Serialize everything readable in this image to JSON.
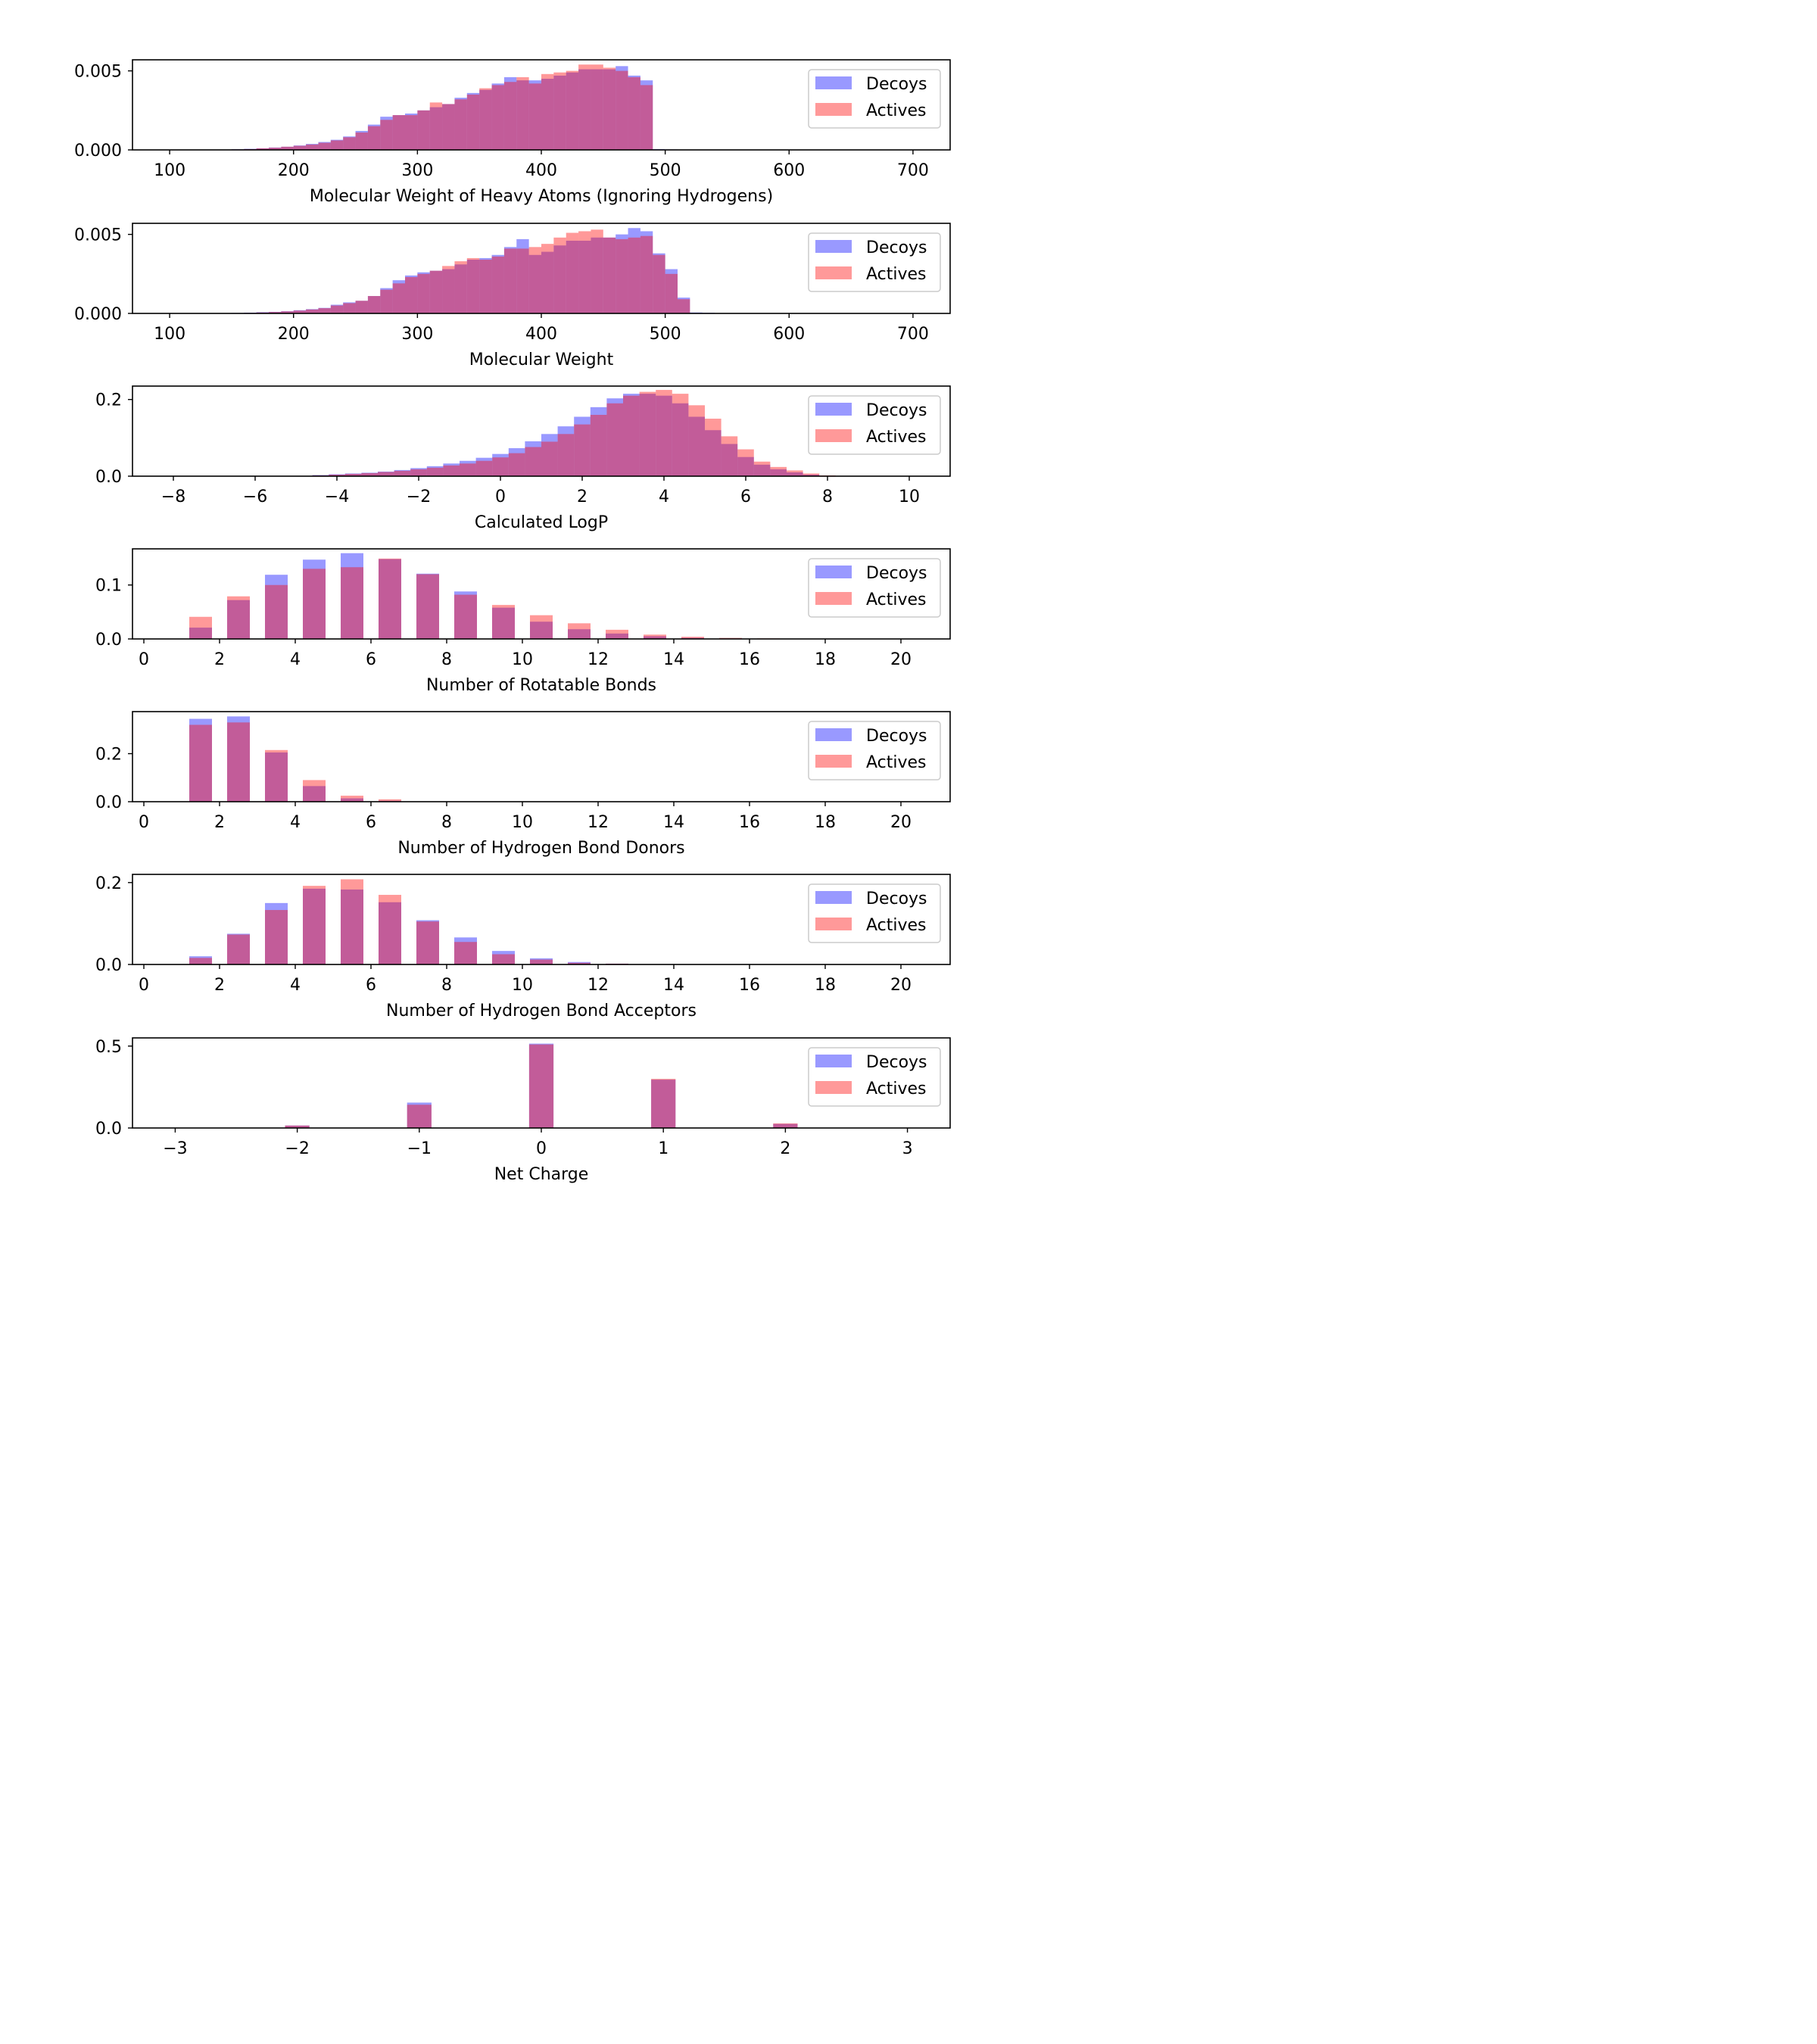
{
  "colors": {
    "decoys": "#0000ff",
    "actives": "#ff0000",
    "series_opacity": 0.4,
    "axes": "#000000",
    "background": "#ffffff"
  },
  "legend": {
    "placement": "upper-right",
    "entries": [
      "Decoys",
      "Actives"
    ]
  },
  "chart_data": [
    {
      "type": "bar",
      "xlabel": "Molecular Weight of Heavy Atoms (Ignoring Hydrogens)",
      "xlim": [
        70,
        730
      ],
      "ylim": [
        0,
        0.0057
      ],
      "xticks": [
        100,
        200,
        300,
        400,
        500,
        600,
        700
      ],
      "xtick_labels": [
        "100",
        "200",
        "300",
        "400",
        "500",
        "600",
        "700"
      ],
      "yticks": [
        0,
        0.005
      ],
      "ytick_labels": [
        "0.000",
        "0.005"
      ],
      "bin_start": 80,
      "bin_width": 10,
      "bar_fraction": 1.0,
      "grid": false,
      "legend": "upper right",
      "series": [
        {
          "name": "Decoys",
          "values": [
            0,
            0,
            0,
            0,
            0,
            0,
            2e-05,
            4e-05,
            7e-05,
            0.0001,
            0.00015,
            0.0002,
            0.00028,
            0.00038,
            0.0005,
            0.00064,
            0.00085,
            0.0012,
            0.0016,
            0.0021,
            0.0022,
            0.0023,
            0.0025,
            0.0027,
            0.0029,
            0.0033,
            0.0036,
            0.0038,
            0.0042,
            0.0046,
            0.0044,
            0.0044,
            0.0045,
            0.0047,
            0.0049,
            0.0051,
            0.0051,
            0.0051,
            0.0053,
            0.0047,
            0.0044,
            5e-05,
            3e-05,
            2e-05,
            1e-05,
            0,
            0,
            0,
            0,
            0,
            0,
            0,
            0,
            0,
            0,
            0,
            0,
            0,
            0,
            0,
            0,
            0,
            0,
            0,
            0
          ]
        },
        {
          "name": "Actives",
          "values": [
            0,
            0,
            0,
            0,
            0,
            0,
            1e-05,
            3e-05,
            5e-05,
            0.0001,
            0.00014,
            0.0002,
            0.00026,
            0.00034,
            0.00045,
            0.0006,
            0.0008,
            0.0011,
            0.0015,
            0.0019,
            0.0022,
            0.0022,
            0.0025,
            0.003,
            0.0029,
            0.0032,
            0.0035,
            0.0039,
            0.0041,
            0.0043,
            0.0046,
            0.0042,
            0.0048,
            0.0049,
            0.005,
            0.0054,
            0.0054,
            0.0052,
            0.005,
            0.0046,
            0.0041,
            1e-05,
            0,
            0,
            0,
            0,
            0,
            0,
            0,
            0,
            0,
            0,
            0,
            0,
            0,
            0,
            0,
            0,
            0,
            0,
            0,
            0,
            0,
            0,
            0
          ]
        }
      ]
    },
    {
      "type": "bar",
      "xlabel": "Molecular Weight",
      "xlim": [
        70,
        730
      ],
      "ylim": [
        0,
        0.0057
      ],
      "xticks": [
        100,
        200,
        300,
        400,
        500,
        600,
        700
      ],
      "xtick_labels": [
        "100",
        "200",
        "300",
        "400",
        "500",
        "600",
        "700"
      ],
      "yticks": [
        0,
        0.005
      ],
      "ytick_labels": [
        "0.000",
        "0.005"
      ],
      "bin_start": 80,
      "bin_width": 10,
      "bar_fraction": 1.0,
      "grid": false,
      "legend": "upper right",
      "series": [
        {
          "name": "Decoys",
          "values": [
            0,
            0,
            0,
            0,
            0,
            0,
            0,
            3e-05,
            5e-05,
            8e-05,
            0.0001,
            0.00014,
            0.0002,
            0.00027,
            0.00035,
            0.00055,
            0.0007,
            0.0008,
            0.0011,
            0.0016,
            0.0021,
            0.0024,
            0.0026,
            0.0027,
            0.0028,
            0.0031,
            0.0034,
            0.0035,
            0.0037,
            0.0042,
            0.0047,
            0.0037,
            0.0039,
            0.0043,
            0.0046,
            0.0046,
            0.0048,
            0.0048,
            0.005,
            0.0054,
            0.0052,
            0.0038,
            0.0028,
            0.001,
            6e-05,
            4e-05,
            2e-05,
            0,
            0,
            0,
            0,
            0,
            0,
            0,
            0,
            0,
            0,
            0,
            0,
            0,
            0,
            0,
            0,
            0,
            0
          ]
        },
        {
          "name": "Actives",
          "values": [
            0,
            0,
            0,
            0,
            0,
            0,
            0,
            1e-05,
            3e-05,
            6e-05,
            9e-05,
            0.00013,
            0.00018,
            0.00025,
            0.00033,
            0.0005,
            0.00065,
            0.0008,
            0.0011,
            0.0015,
            0.0019,
            0.0023,
            0.0025,
            0.0027,
            0.003,
            0.0033,
            0.0035,
            0.0034,
            0.0036,
            0.0041,
            0.0041,
            0.0042,
            0.0044,
            0.0048,
            0.0051,
            0.0052,
            0.0053,
            0.0048,
            0.0047,
            0.0048,
            0.0049,
            0.0037,
            0.0025,
            0.0009,
            2e-05,
            0,
            0,
            0,
            0,
            0,
            0,
            0,
            0,
            0,
            0,
            0,
            0,
            0,
            0,
            0,
            0,
            0,
            0,
            0,
            0
          ]
        }
      ]
    },
    {
      "type": "bar",
      "xlabel": "Calculated LogP",
      "xlim": [
        -9,
        11
      ],
      "ylim": [
        0,
        0.235
      ],
      "xticks": [
        -8,
        -6,
        -4,
        -2,
        0,
        2,
        4,
        6,
        8,
        10
      ],
      "xtick_labels": [
        "−8",
        "−6",
        "−4",
        "−2",
        "0",
        "2",
        "4",
        "6",
        "8",
        "10"
      ],
      "yticks": [
        0,
        0.2
      ],
      "ytick_labels": [
        "0.0",
        "0.2"
      ],
      "bin_start": -5,
      "bin_width": 0.4,
      "bar_fraction": 1.0,
      "grid": false,
      "legend": "upper right",
      "series": [
        {
          "name": "Decoys",
          "values": [
            0.001,
            0.003,
            0.005,
            0.007,
            0.009,
            0.012,
            0.016,
            0.021,
            0.026,
            0.033,
            0.04,
            0.048,
            0.058,
            0.073,
            0.091,
            0.11,
            0.13,
            0.155,
            0.18,
            0.203,
            0.215,
            0.215,
            0.21,
            0.19,
            0.155,
            0.12,
            0.084,
            0.05,
            0.03,
            0.018,
            0.01,
            0.004,
            0.001,
            0
          ]
        },
        {
          "name": "Actives",
          "values": [
            0.001,
            0.002,
            0.004,
            0.006,
            0.008,
            0.011,
            0.014,
            0.018,
            0.022,
            0.028,
            0.033,
            0.04,
            0.049,
            0.06,
            0.076,
            0.09,
            0.11,
            0.135,
            0.16,
            0.19,
            0.21,
            0.22,
            0.225,
            0.215,
            0.185,
            0.15,
            0.104,
            0.07,
            0.038,
            0.024,
            0.015,
            0.007,
            0.002,
            0
          ]
        }
      ]
    },
    {
      "type": "bar",
      "xlabel": "Number of Rotatable Bonds",
      "xlim": [
        -0.3,
        21.3
      ],
      "ylim": [
        0,
        0.167
      ],
      "xticks": [
        0,
        2,
        4,
        6,
        8,
        10,
        12,
        14,
        16,
        18,
        20
      ],
      "xtick_labels": [
        "0",
        "2",
        "4",
        "6",
        "8",
        "10",
        "12",
        "14",
        "16",
        "18",
        "20"
      ],
      "yticks": [
        0,
        0.1
      ],
      "ytick_labels": [
        "0.0",
        "0.1"
      ],
      "bin_start": 1,
      "bin_width": 1,
      "bar_fraction": 0.6,
      "grid": false,
      "legend": "upper right",
      "series": [
        {
          "name": "Decoys",
          "values": [
            0.021,
            0.072,
            0.119,
            0.147,
            0.159,
            0.148,
            0.121,
            0.088,
            0.058,
            0.032,
            0.018,
            0.01,
            0.005,
            0.002,
            0.001,
            0.0005,
            0,
            0,
            0,
            0
          ]
        },
        {
          "name": "Actives",
          "values": [
            0.041,
            0.079,
            0.1,
            0.13,
            0.133,
            0.149,
            0.12,
            0.082,
            0.063,
            0.044,
            0.029,
            0.017,
            0.008,
            0.004,
            0.002,
            0.001,
            0,
            0,
            0,
            0
          ]
        }
      ]
    },
    {
      "type": "bar",
      "xlabel": "Number of Hydrogen Bond Donors",
      "xlim": [
        -0.3,
        21.3
      ],
      "ylim": [
        0,
        0.375
      ],
      "xticks": [
        0,
        2,
        4,
        6,
        8,
        10,
        12,
        14,
        16,
        18,
        20
      ],
      "xtick_labels": [
        "0",
        "2",
        "4",
        "6",
        "8",
        "10",
        "12",
        "14",
        "16",
        "18",
        "20"
      ],
      "yticks": [
        0,
        0.2
      ],
      "ytick_labels": [
        "0.0",
        "0.2"
      ],
      "bin_start": 1,
      "bin_width": 1,
      "bar_fraction": 0.6,
      "grid": false,
      "legend": "upper right",
      "series": [
        {
          "name": "Decoys",
          "values": [
            0.345,
            0.355,
            0.205,
            0.065,
            0.014,
            0.004,
            0,
            0,
            0,
            0,
            0,
            0,
            0,
            0,
            0,
            0,
            0,
            0,
            0,
            0
          ]
        },
        {
          "name": "Actives",
          "values": [
            0.32,
            0.33,
            0.215,
            0.09,
            0.025,
            0.01,
            0,
            0,
            0,
            0,
            0,
            0,
            0,
            0,
            0,
            0,
            0,
            0,
            0,
            0
          ]
        }
      ]
    },
    {
      "type": "bar",
      "xlabel": "Number of Hydrogen Bond Acceptors",
      "xlim": [
        -0.3,
        21.3
      ],
      "ylim": [
        0,
        0.22
      ],
      "xticks": [
        0,
        2,
        4,
        6,
        8,
        10,
        12,
        14,
        16,
        18,
        20
      ],
      "xtick_labels": [
        "0",
        "2",
        "4",
        "6",
        "8",
        "10",
        "12",
        "14",
        "16",
        "18",
        "20"
      ],
      "yticks": [
        0,
        0.2
      ],
      "ytick_labels": [
        "0.0",
        "0.2"
      ],
      "bin_start": 1,
      "bin_width": 1,
      "bar_fraction": 0.6,
      "grid": false,
      "legend": "upper right",
      "series": [
        {
          "name": "Decoys",
          "values": [
            0.02,
            0.075,
            0.15,
            0.185,
            0.183,
            0.152,
            0.108,
            0.066,
            0.033,
            0.015,
            0.006,
            0.002,
            0,
            0,
            0,
            0,
            0,
            0,
            0,
            0
          ]
        },
        {
          "name": "Actives",
          "values": [
            0.016,
            0.073,
            0.133,
            0.192,
            0.208,
            0.17,
            0.105,
            0.055,
            0.025,
            0.012,
            0.004,
            0.002,
            0,
            0,
            0,
            0,
            0,
            0,
            0,
            0
          ]
        }
      ]
    },
    {
      "type": "bar",
      "xlabel": "Net Charge",
      "xlim": [
        -3.35,
        3.35
      ],
      "ylim": [
        0,
        0.55
      ],
      "xticks": [
        -3,
        -2,
        -1,
        0,
        1,
        2,
        3
      ],
      "xtick_labels": [
        "−3",
        "−2",
        "−1",
        "0",
        "1",
        "2",
        "3"
      ],
      "yticks": [
        0,
        0.5
      ],
      "ytick_labels": [
        "0.0",
        "0.5"
      ],
      "categories": [
        -2,
        -1,
        0,
        1,
        2
      ],
      "bar_width_units": 0.2,
      "grid": false,
      "legend": "upper right",
      "series": [
        {
          "name": "Decoys",
          "values": [
            0.015,
            0.155,
            0.515,
            0.295,
            0.025
          ]
        },
        {
          "name": "Actives",
          "values": [
            0.015,
            0.142,
            0.51,
            0.3,
            0.028
          ]
        }
      ]
    }
  ]
}
